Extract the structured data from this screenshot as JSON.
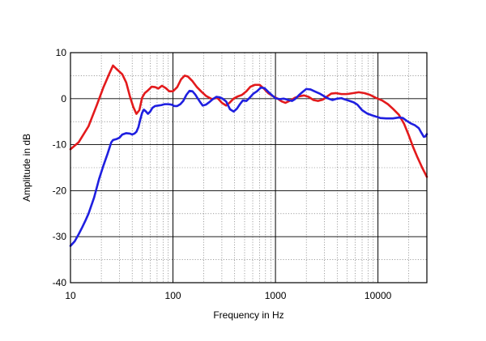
{
  "chart_data": {
    "type": "line",
    "title": "",
    "xlabel": "Frequency in Hz",
    "ylabel": "Amplitude in dB",
    "x_scale": "log",
    "xlim": [
      10,
      30000
    ],
    "ylim": [
      -40,
      10
    ],
    "x_ticks": [
      10,
      100,
      1000,
      10000
    ],
    "x_tick_labels": [
      "10",
      "100",
      "1000",
      "10000"
    ],
    "y_ticks": [
      10,
      0,
      -10,
      -20,
      -30,
      -40
    ],
    "y_tick_labels": [
      "10",
      "0",
      "-10",
      "-20",
      "-30",
      "-40"
    ],
    "grid": true,
    "colors": {
      "red": "#e31a1c",
      "blue": "#1f1fe0"
    },
    "series": [
      {
        "color": "red",
        "points": [
          [
            10,
            -11
          ],
          [
            12,
            -9.5
          ],
          [
            15,
            -6
          ],
          [
            18,
            -1.5
          ],
          [
            21,
            2.5
          ],
          [
            24,
            5.5
          ],
          [
            26,
            7.2
          ],
          [
            28,
            6.5
          ],
          [
            32,
            5.3
          ],
          [
            35,
            3.5
          ],
          [
            38,
            0.5
          ],
          [
            41,
            -1.8
          ],
          [
            44,
            -3.3
          ],
          [
            47,
            -2.5
          ],
          [
            50,
            0.2
          ],
          [
            53,
            1.2
          ],
          [
            57,
            1.8
          ],
          [
            62,
            2.6
          ],
          [
            67,
            2.5
          ],
          [
            72,
            2.2
          ],
          [
            78,
            2.8
          ],
          [
            85,
            2.3
          ],
          [
            92,
            1.6
          ],
          [
            100,
            1.6
          ],
          [
            110,
            2.5
          ],
          [
            120,
            4.2
          ],
          [
            130,
            5
          ],
          [
            140,
            4.8
          ],
          [
            155,
            3.8
          ],
          [
            170,
            2.6
          ],
          [
            190,
            1.5
          ],
          [
            210,
            0.6
          ],
          [
            240,
            -0.1
          ],
          [
            270,
            0.2
          ],
          [
            300,
            -0.9
          ],
          [
            330,
            -1.5
          ],
          [
            360,
            -0.8
          ],
          [
            390,
            0
          ],
          [
            430,
            0.5
          ],
          [
            470,
            0.8
          ],
          [
            520,
            1.6
          ],
          [
            570,
            2.6
          ],
          [
            630,
            3
          ],
          [
            700,
            3
          ],
          [
            770,
            2.2
          ],
          [
            850,
            1.2
          ],
          [
            950,
            0.5
          ],
          [
            1050,
            0
          ],
          [
            1150,
            -0.6
          ],
          [
            1250,
            -0.9
          ],
          [
            1400,
            -0.4
          ],
          [
            1550,
            0.2
          ],
          [
            1700,
            0.5
          ],
          [
            1900,
            0.7
          ],
          [
            2100,
            0.4
          ],
          [
            2350,
            -0.3
          ],
          [
            2600,
            -0.5
          ],
          [
            2900,
            -0.2
          ],
          [
            3200,
            0.5
          ],
          [
            3500,
            1.1
          ],
          [
            3900,
            1.2
          ],
          [
            4400,
            1
          ],
          [
            5000,
            1
          ],
          [
            5700,
            1.2
          ],
          [
            6500,
            1.4
          ],
          [
            7400,
            1.2
          ],
          [
            8400,
            0.8
          ],
          [
            9500,
            0.2
          ],
          [
            11000,
            -0.4
          ],
          [
            12500,
            -1.2
          ],
          [
            14000,
            -2.2
          ],
          [
            16000,
            -3.5
          ],
          [
            18000,
            -5.5
          ],
          [
            20000,
            -8
          ],
          [
            22000,
            -10.5
          ],
          [
            24000,
            -12.5
          ],
          [
            27000,
            -15
          ],
          [
            30000,
            -17
          ]
        ]
      },
      {
        "color": "blue",
        "points": [
          [
            10,
            -32
          ],
          [
            11,
            -31
          ],
          [
            12,
            -29.5
          ],
          [
            13,
            -28
          ],
          [
            14,
            -26.5
          ],
          [
            15,
            -25
          ],
          [
            17,
            -21.5
          ],
          [
            19,
            -17.5
          ],
          [
            21,
            -14.5
          ],
          [
            23,
            -12
          ],
          [
            25,
            -9.5
          ],
          [
            26,
            -9
          ],
          [
            28,
            -8.8
          ],
          [
            30,
            -8.5
          ],
          [
            32,
            -7.8
          ],
          [
            35,
            -7.5
          ],
          [
            38,
            -7.6
          ],
          [
            40,
            -7.8
          ],
          [
            42,
            -7.6
          ],
          [
            44,
            -7.2
          ],
          [
            46,
            -6.2
          ],
          [
            48,
            -4.5
          ],
          [
            50,
            -3.1
          ],
          [
            52,
            -2.4
          ],
          [
            54,
            -2.7
          ],
          [
            57,
            -3.3
          ],
          [
            60,
            -2.8
          ],
          [
            63,
            -2
          ],
          [
            67,
            -1.6
          ],
          [
            72,
            -1.5
          ],
          [
            77,
            -1.4
          ],
          [
            83,
            -1.2
          ],
          [
            90,
            -1.2
          ],
          [
            97,
            -1.3
          ],
          [
            103,
            -1.6
          ],
          [
            110,
            -1.6
          ],
          [
            118,
            -1.2
          ],
          [
            126,
            -0.5
          ],
          [
            135,
            0.8
          ],
          [
            145,
            1.7
          ],
          [
            155,
            1.6
          ],
          [
            165,
            0.9
          ],
          [
            175,
            0
          ],
          [
            185,
            -0.8
          ],
          [
            195,
            -1.5
          ],
          [
            210,
            -1.3
          ],
          [
            225,
            -0.8
          ],
          [
            245,
            -0.1
          ],
          [
            265,
            0.4
          ],
          [
            285,
            0.3
          ],
          [
            305,
            0
          ],
          [
            330,
            -0.6
          ],
          [
            360,
            -2.3
          ],
          [
            390,
            -2.8
          ],
          [
            420,
            -2.2
          ],
          [
            450,
            -1.2
          ],
          [
            480,
            -0.4
          ],
          [
            520,
            -0.5
          ],
          [
            560,
            0.2
          ],
          [
            610,
            1.1
          ],
          [
            660,
            1.6
          ],
          [
            720,
            2.4
          ],
          [
            780,
            2.3
          ],
          [
            850,
            1.5
          ],
          [
            930,
            0.7
          ],
          [
            1000,
            0.1
          ],
          [
            1100,
            -0.1
          ],
          [
            1200,
            0
          ],
          [
            1300,
            -0.2
          ],
          [
            1450,
            -0.5
          ],
          [
            1550,
            -0.1
          ],
          [
            1700,
            0.8
          ],
          [
            1850,
            1.5
          ],
          [
            2000,
            2.1
          ],
          [
            2200,
            2
          ],
          [
            2400,
            1.6
          ],
          [
            2700,
            1.1
          ],
          [
            3000,
            0.5
          ],
          [
            3300,
            0
          ],
          [
            3600,
            -0.3
          ],
          [
            4000,
            0
          ],
          [
            4400,
            0.1
          ],
          [
            4800,
            -0.2
          ],
          [
            5300,
            -0.5
          ],
          [
            5800,
            -0.8
          ],
          [
            6300,
            -1.3
          ],
          [
            7000,
            -2.5
          ],
          [
            7800,
            -3.2
          ],
          [
            8700,
            -3.6
          ],
          [
            9600,
            -3.9
          ],
          [
            10500,
            -4.2
          ],
          [
            12000,
            -4.3
          ],
          [
            14000,
            -4.3
          ],
          [
            16000,
            -4.1
          ],
          [
            17500,
            -4.2
          ],
          [
            19000,
            -4.8
          ],
          [
            21000,
            -5.4
          ],
          [
            23000,
            -5.8
          ],
          [
            25000,
            -6.4
          ],
          [
            26500,
            -7.4
          ],
          [
            28000,
            -8.3
          ],
          [
            29000,
            -8.2
          ],
          [
            30000,
            -7.7
          ]
        ]
      }
    ]
  }
}
